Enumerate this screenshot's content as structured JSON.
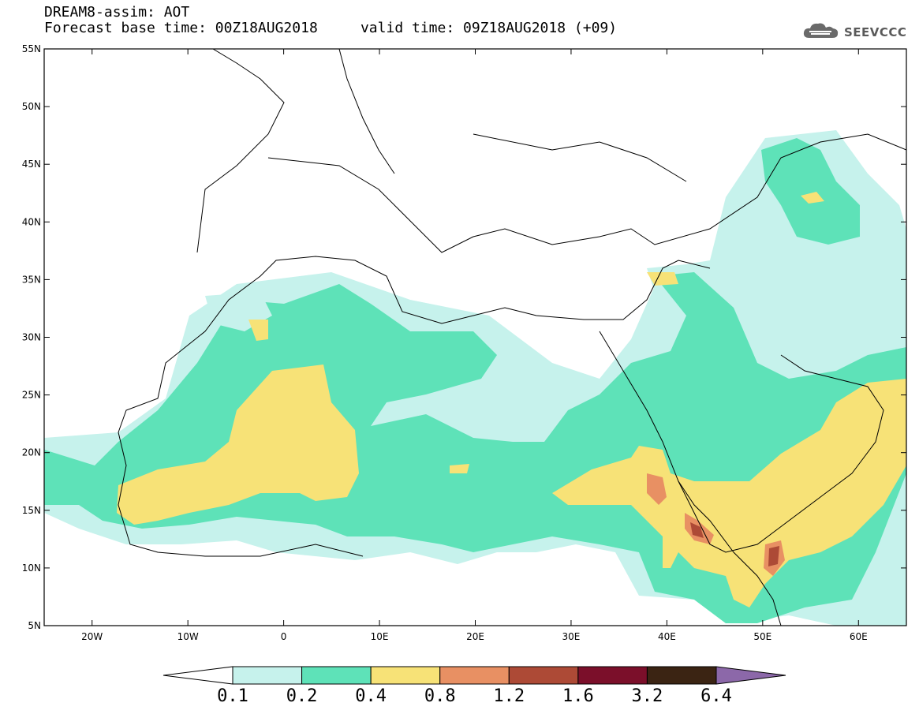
{
  "header": {
    "line1": "DREAM8-assim: AOT",
    "line2": "Forecast base time: 00Z18AUG2018     valid time: 09Z18AUG2018 (+09)",
    "logo_text": "SEEVCCC",
    "logo_icon": "cloud-icon"
  },
  "axes": {
    "lat_labels": [
      "55N",
      "50N",
      "45N",
      "40N",
      "35N",
      "30N",
      "25N",
      "20N",
      "15N",
      "10N",
      "5N"
    ],
    "lon_labels": [
      "20W",
      "10W",
      "0",
      "10E",
      "20E",
      "30E",
      "40E",
      "50E",
      "60E"
    ],
    "lat_range": [
      5,
      55
    ],
    "lon_range": [
      -25,
      65
    ]
  },
  "colorbar": {
    "levels": [
      "0.1",
      "0.2",
      "0.4",
      "0.8",
      "1.2",
      "1.6",
      "3.2",
      "6.4"
    ],
    "colors": [
      "#ffffff",
      "#c6f2ec",
      "#5ee2b8",
      "#f7e277",
      "#e89063",
      "#ad4a36",
      "#7b0f2a",
      "#3b2413",
      "#8c68a9"
    ]
  },
  "colors": {
    "aot_0_1": "#c6f2ec",
    "aot_0_2": "#5ee2b8",
    "aot_0_4": "#f7e277",
    "aot_0_8": "#e89063",
    "aot_1_2": "#ad4a36",
    "coast": "#000000"
  }
}
